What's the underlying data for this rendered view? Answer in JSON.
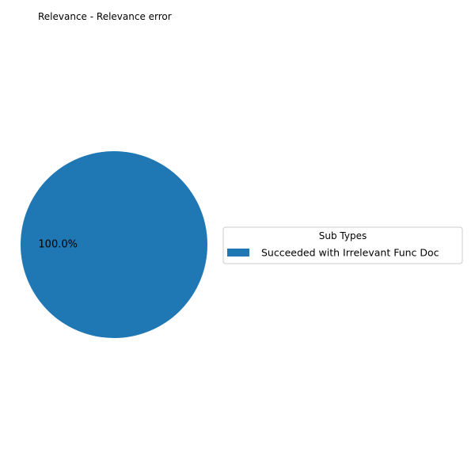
{
  "chart_data": {
    "type": "pie",
    "title": "Relevance - Relevance error",
    "slices": [
      {
        "label": "Succeeded with Irrelevant Func Doc",
        "value": 100.0,
        "pct_label": "100.0%",
        "color": "#1f77b4"
      }
    ],
    "legend": {
      "title": "Sub Types",
      "placement": "center-right"
    }
  }
}
